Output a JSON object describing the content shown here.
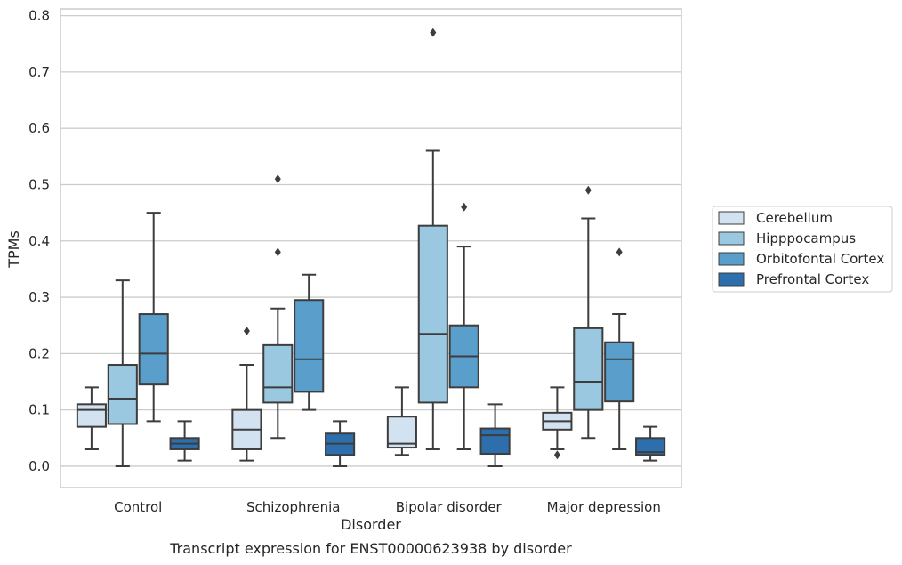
{
  "chart_data": {
    "type": "box",
    "title": "",
    "caption": "Transcript expression for ENST00000623938 by disorder",
    "xlabel": "Disorder",
    "ylabel": "TPMs",
    "ylim": [
      -0.038,
      0.812
    ],
    "yticks": [
      0.0,
      0.1,
      0.2,
      0.3,
      0.4,
      0.5,
      0.6,
      0.7,
      0.8
    ],
    "ytick_labels": [
      "0.0",
      "0.1",
      "0.2",
      "0.3",
      "0.4",
      "0.5",
      "0.6",
      "0.7",
      "0.8"
    ],
    "grid": true,
    "legend_position": "right",
    "categories": [
      "Control",
      "Schizophrenia",
      "Bipolar disorder",
      "Major depression"
    ],
    "series": [
      {
        "name": "Cerebellum",
        "color": "#d2e2f1",
        "boxes": [
          {
            "whislo": 0.03,
            "q1": 0.07,
            "med": 0.1,
            "q3": 0.11,
            "whishi": 0.14,
            "fliers": []
          },
          {
            "whislo": 0.01,
            "q1": 0.03,
            "med": 0.065,
            "q3": 0.1,
            "whishi": 0.18,
            "fliers": [
              0.24
            ]
          },
          {
            "whislo": 0.02,
            "q1": 0.033,
            "med": 0.04,
            "q3": 0.088,
            "whishi": 0.14,
            "fliers": []
          },
          {
            "whislo": 0.03,
            "q1": 0.065,
            "med": 0.08,
            "q3": 0.095,
            "whishi": 0.14,
            "fliers": [
              0.02
            ]
          }
        ]
      },
      {
        "name": "Hipppocampus",
        "color": "#9ac8e0",
        "boxes": [
          {
            "whislo": 0.0,
            "q1": 0.075,
            "med": 0.12,
            "q3": 0.18,
            "whishi": 0.33,
            "fliers": []
          },
          {
            "whislo": 0.05,
            "q1": 0.113,
            "med": 0.14,
            "q3": 0.215,
            "whishi": 0.28,
            "fliers": [
              0.38,
              0.51
            ]
          },
          {
            "whislo": 0.03,
            "q1": 0.113,
            "med": 0.235,
            "q3": 0.427,
            "whishi": 0.56,
            "fliers": [
              0.77
            ]
          },
          {
            "whislo": 0.05,
            "q1": 0.1,
            "med": 0.15,
            "q3": 0.245,
            "whishi": 0.44,
            "fliers": [
              0.49
            ]
          }
        ]
      },
      {
        "name": "Orbitofontal Cortex",
        "color": "#5a9ecb",
        "boxes": [
          {
            "whislo": 0.08,
            "q1": 0.145,
            "med": 0.2,
            "q3": 0.27,
            "whishi": 0.45,
            "fliers": []
          },
          {
            "whislo": 0.1,
            "q1": 0.132,
            "med": 0.19,
            "q3": 0.295,
            "whishi": 0.34,
            "fliers": []
          },
          {
            "whislo": 0.03,
            "q1": 0.14,
            "med": 0.195,
            "q3": 0.25,
            "whishi": 0.39,
            "fliers": [
              0.46
            ]
          },
          {
            "whislo": 0.03,
            "q1": 0.115,
            "med": 0.19,
            "q3": 0.22,
            "whishi": 0.27,
            "fliers": [
              0.38
            ]
          }
        ]
      },
      {
        "name": "Prefrontal Cortex",
        "color": "#2d6fac",
        "boxes": [
          {
            "whislo": 0.01,
            "q1": 0.03,
            "med": 0.04,
            "q3": 0.05,
            "whishi": 0.08,
            "fliers": []
          },
          {
            "whislo": 0.0,
            "q1": 0.02,
            "med": 0.04,
            "q3": 0.058,
            "whishi": 0.08,
            "fliers": []
          },
          {
            "whislo": 0.0,
            "q1": 0.022,
            "med": 0.055,
            "q3": 0.067,
            "whishi": 0.11,
            "fliers": []
          },
          {
            "whislo": 0.01,
            "q1": 0.02,
            "med": 0.025,
            "q3": 0.05,
            "whishi": 0.07,
            "fliers": []
          }
        ]
      }
    ]
  }
}
